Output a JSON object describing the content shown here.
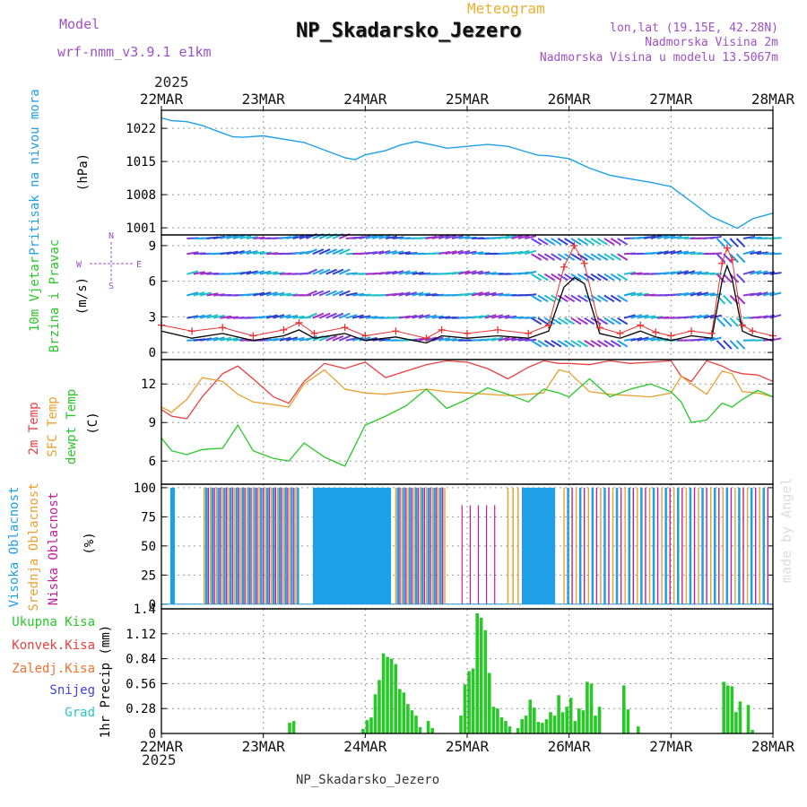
{
  "header": {
    "model_label": "Model",
    "model_name": "wrf-nmm_v3.9.1 e1km",
    "meteogram_label": "Meteogram",
    "station_title": "NP_Skadarsko_Jezero",
    "coords": "lon,lat (19.15E, 42.28N)",
    "elevation": "Nadmorska Visina 2m",
    "model_elevation": "Nadmorska Visina u modelu 13.5067m",
    "footer_title": "NP_Skadarsko_Jezero",
    "credit": "made by Angel"
  },
  "time_axis": {
    "year": "2025",
    "ticks": [
      "22MAR",
      "23MAR",
      "24MAR",
      "25MAR",
      "26MAR",
      "27MAR",
      "28MAR"
    ],
    "start_day": 22,
    "end_day": 28
  },
  "colors": {
    "pressure": "#1ea0e6",
    "wind_speed": "#000000",
    "wind_gust": "#e83030",
    "t2m": "#e84040",
    "tsfc": "#e8a030",
    "dewpoint": "#28c828",
    "high_cloud": "#1ea0e6",
    "mid_cloud": "#e8a030",
    "low_cloud": "#c0209a",
    "total_precip": "#28c828",
    "conv_precip": "#e84040",
    "frozen_precip": "#f07030",
    "snow": "#4040e0",
    "graupel": "#28c8c8"
  },
  "chart_data": [
    {
      "type": "line",
      "panel": "pressure",
      "ylabel": "Pritisak na nivou mora",
      "unit": "(hPa)",
      "yticks": [
        1001,
        1008,
        1015,
        1022
      ],
      "ylim": [
        999.5,
        1025.8
      ],
      "x": [
        22.0,
        22.1,
        22.25,
        22.4,
        22.55,
        22.7,
        22.8,
        23.0,
        23.2,
        23.4,
        23.6,
        23.8,
        23.9,
        24.0,
        24.2,
        24.35,
        24.5,
        24.7,
        24.8,
        25.0,
        25.2,
        25.4,
        25.6,
        25.7,
        25.8,
        26.0,
        26.2,
        26.4,
        26.6,
        26.8,
        27.0,
        27.2,
        27.4,
        27.55,
        27.65,
        27.8,
        28.0
      ],
      "series": [
        {
          "values": [
            1024.2,
            1023.6,
            1023.4,
            1022.6,
            1021.4,
            1020.2,
            1020.1,
            1020.4,
            1019.7,
            1019.0,
            1017.4,
            1015.8,
            1015.4,
            1016.4,
            1017.3,
            1018.5,
            1019.2,
            1018.3,
            1017.8,
            1018.2,
            1018.6,
            1018.2,
            1016.9,
            1016.3,
            1016.2,
            1015.6,
            1013.6,
            1012.1,
            1011.3,
            1010.6,
            1009.7,
            1006.5,
            1003.3,
            1001.9,
            1000.9,
            1002.9,
            1004.1
          ]
        }
      ]
    },
    {
      "type": "line",
      "panel": "wind",
      "ylabel": "10m Vjetar",
      "ylabel2": "Brzina i Pravac",
      "unit": "(m/s)",
      "compass_labels": [
        "N",
        "S",
        "W",
        "E"
      ],
      "yticks": [
        0,
        3,
        6,
        9
      ],
      "ylim": [
        -0.6,
        9.9
      ],
      "x": [
        22.0,
        22.3,
        22.6,
        22.9,
        23.2,
        23.35,
        23.5,
        23.8,
        24.0,
        24.3,
        24.6,
        24.75,
        25.0,
        25.3,
        25.6,
        25.8,
        25.95,
        26.05,
        26.15,
        26.3,
        26.5,
        26.7,
        26.85,
        27.0,
        27.2,
        27.4,
        27.5,
        27.55,
        27.6,
        27.7,
        27.8,
        28.0
      ],
      "series": [
        {
          "name": "speed",
          "values": [
            1.8,
            1.2,
            1.6,
            1.0,
            1.4,
            1.9,
            1.2,
            1.6,
            1.0,
            1.3,
            0.8,
            1.4,
            1.2,
            1.4,
            1.2,
            1.8,
            5.5,
            6.3,
            5.8,
            1.6,
            1.2,
            1.8,
            1.3,
            1.0,
            1.4,
            1.2,
            6.0,
            7.3,
            6.2,
            1.8,
            1.4,
            1.0
          ]
        },
        {
          "name": "gust",
          "values": [
            2.3,
            1.8,
            2.1,
            1.4,
            1.9,
            2.5,
            1.6,
            2.1,
            1.4,
            1.8,
            1.2,
            1.9,
            1.6,
            1.9,
            1.6,
            2.3,
            7.2,
            9.0,
            7.5,
            2.1,
            1.6,
            2.3,
            1.7,
            1.4,
            1.8,
            1.6,
            7.5,
            8.8,
            7.8,
            2.3,
            1.8,
            1.4
          ]
        }
      ]
    },
    {
      "type": "line",
      "panel": "temperature",
      "ylabel": "2m Temp",
      "ylabel2": "SFC Temp",
      "ylabel3": "dewpt Temp",
      "unit": "(C)",
      "yticks": [
        6,
        9,
        12
      ],
      "ylim": [
        4.2,
        13.9
      ],
      "x": [
        22.0,
        22.1,
        22.25,
        22.4,
        22.6,
        22.75,
        22.9,
        23.1,
        23.25,
        23.4,
        23.6,
        23.8,
        24.0,
        24.2,
        24.4,
        24.6,
        24.8,
        25.0,
        25.2,
        25.4,
        25.6,
        25.75,
        25.9,
        26.0,
        26.2,
        26.4,
        26.6,
        26.8,
        27.0,
        27.1,
        27.2,
        27.35,
        27.5,
        27.6,
        27.7,
        27.85,
        28.0
      ],
      "series": [
        {
          "name": "2m",
          "values": [
            10.0,
            9.5,
            9.3,
            11.0,
            12.8,
            13.4,
            12.4,
            11.0,
            10.5,
            12.2,
            13.6,
            13.2,
            13.7,
            12.5,
            13.0,
            13.5,
            13.8,
            13.7,
            13.2,
            12.4,
            13.3,
            13.8,
            13.6,
            13.6,
            13.5,
            13.8,
            13.6,
            13.7,
            13.8,
            12.6,
            12.2,
            13.8,
            13.4,
            13.0,
            12.8,
            12.7,
            12.2
          ]
        },
        {
          "name": "sfc",
          "values": [
            10.2,
            9.8,
            10.8,
            12.5,
            12.2,
            11.2,
            10.6,
            10.4,
            10.2,
            12.0,
            13.1,
            11.6,
            11.3,
            11.2,
            11.4,
            11.6,
            11.4,
            11.3,
            11.2,
            11.1,
            11.2,
            11.3,
            13.1,
            12.9,
            11.4,
            11.2,
            11.1,
            11.0,
            11.3,
            12.6,
            12.0,
            11.2,
            13.0,
            12.8,
            11.4,
            11.3,
            11.0
          ]
        },
        {
          "name": "dewpt",
          "values": [
            7.8,
            6.8,
            6.5,
            6.9,
            7.0,
            8.8,
            6.8,
            6.2,
            6.0,
            7.4,
            6.3,
            5.6,
            8.8,
            9.5,
            10.3,
            11.6,
            10.1,
            10.8,
            11.7,
            11.2,
            10.6,
            11.6,
            11.3,
            11.0,
            12.4,
            11.0,
            11.6,
            12.0,
            11.4,
            10.6,
            9.0,
            9.2,
            10.5,
            10.2,
            10.8,
            11.5,
            11.0
          ]
        }
      ]
    },
    {
      "type": "bar",
      "panel": "cloud",
      "ylabel": "Visoka Oblacnost",
      "ylabel2": "Srednja Oblacnost",
      "ylabel3": "Niska Oblacnost",
      "unit": "(%)",
      "yticks": [
        0,
        25,
        50,
        75,
        100
      ],
      "ylim": [
        -4,
        103
      ],
      "segments": [
        {
          "series": "high",
          "start": 22.1,
          "end": 22.12,
          "step": 0.02
        },
        {
          "series": "mixed",
          "start": 22.42,
          "end": 23.35,
          "step": 0.02
        },
        {
          "series": "high",
          "start": 23.5,
          "end": 24.25,
          "step": 0.02
        },
        {
          "series": "mixed",
          "start": 24.3,
          "end": 24.78,
          "step": 0.02
        },
        {
          "series": "low",
          "start": 24.95,
          "end": 25.3,
          "step": 0.08
        },
        {
          "series": "mid",
          "start": 25.4,
          "end": 25.55,
          "step": 0.05
        },
        {
          "series": "high",
          "start": 25.55,
          "end": 25.85,
          "step": 0.02
        },
        {
          "series": "mixed",
          "start": 25.95,
          "end": 27.98,
          "step": 0.04
        }
      ]
    },
    {
      "type": "bar",
      "panel": "precip",
      "ylabel": "1hr Precip (mm)",
      "legend": [
        "Ukupna Kisa",
        "Konvek.Kisa",
        "Zaledj.Kisa",
        "Snijeg",
        "Grad"
      ],
      "yticks": [
        0,
        0.28,
        0.56,
        0.84,
        1.12,
        1.4
      ],
      "ytick_labels": [
        "0",
        "0.28",
        "0.56",
        "0.84",
        "1.12",
        "1.4"
      ],
      "ylim": [
        0,
        1.4
      ],
      "x": [
        23.26,
        23.3,
        23.98,
        24.02,
        24.06,
        24.1,
        24.14,
        24.18,
        24.22,
        24.26,
        24.3,
        24.34,
        24.38,
        24.42,
        24.46,
        24.5,
        24.54,
        24.62,
        24.66,
        24.94,
        24.98,
        25.02,
        25.06,
        25.1,
        25.14,
        25.18,
        25.22,
        25.26,
        25.3,
        25.34,
        25.38,
        25.42,
        25.5,
        25.54,
        25.58,
        25.62,
        25.66,
        25.7,
        25.74,
        25.78,
        25.82,
        25.86,
        25.9,
        25.94,
        25.98,
        26.02,
        26.06,
        26.1,
        26.14,
        26.18,
        26.22,
        26.26,
        26.3,
        26.54,
        26.58,
        26.68,
        27.52,
        27.56,
        27.6,
        27.64,
        27.68,
        27.76,
        27.8
      ],
      "series": [
        {
          "name": "Ukupna Kisa",
          "values": [
            0.12,
            0.14,
            0.05,
            0.15,
            0.18,
            0.44,
            0.6,
            0.9,
            0.86,
            0.84,
            0.78,
            0.5,
            0.46,
            0.33,
            0.26,
            0.2,
            0.07,
            0.14,
            0.06,
            0.2,
            0.55,
            0.7,
            0.73,
            1.35,
            1.3,
            1.16,
            0.68,
            0.3,
            0.28,
            0.18,
            0.14,
            0.08,
            0.06,
            0.16,
            0.2,
            0.38,
            0.29,
            0.13,
            0.12,
            0.16,
            0.24,
            0.2,
            0.43,
            0.24,
            0.3,
            0.4,
            0.14,
            0.28,
            0.26,
            0.58,
            0.56,
            0.2,
            0.3,
            0.54,
            0.27,
            0.08,
            0.58,
            0.54,
            0.53,
            0.24,
            0.36,
            0.32,
            0.04
          ]
        }
      ]
    }
  ]
}
